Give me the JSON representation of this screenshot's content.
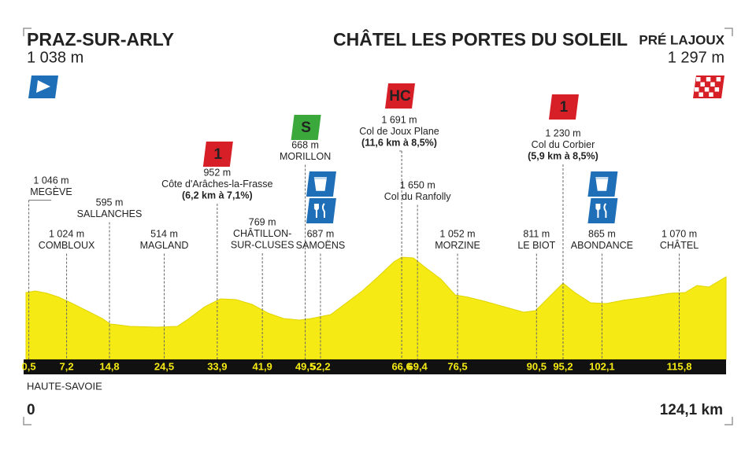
{
  "start": {
    "name": "PRAZ-SUR-ARLY",
    "altitude": "1 038 m"
  },
  "finish": {
    "name": "CHÂTEL LES PORTES DU SOLEIL",
    "suffix": "PRÉ LAJOUX",
    "altitude": "1 297 m"
  },
  "waypoints": [
    {
      "km": "0,5",
      "altitude": "1 046 m",
      "name_lines": [
        "MEGÈVE"
      ]
    },
    {
      "km": "7,2",
      "altitude": "1 024 m",
      "name_lines": [
        "COMBLOUX"
      ]
    },
    {
      "km": "14,8",
      "altitude": "595 m",
      "name_lines": [
        "SALLANCHES"
      ]
    },
    {
      "km": "24,5",
      "altitude": "514 m",
      "name_lines": [
        "MAGLAND"
      ]
    },
    {
      "km": "33,9",
      "altitude": "952 m",
      "name_lines": [
        "Côte d'Arâches-la-Frasse"
      ],
      "climb": "(6,2 km à 7,1%)",
      "badge": "1"
    },
    {
      "km": "41,9",
      "altitude": "769 m",
      "name_lines": [
        "CHÂTILLON-",
        "SUR-CLUSES"
      ]
    },
    {
      "km": "49,5",
      "altitude": "668 m",
      "name_lines": [
        "MORILLON"
      ],
      "badge": "S"
    },
    {
      "km": "52,2",
      "altitude": "687 m",
      "name_lines": [
        "SAMOËNS"
      ]
    },
    {
      "km": "66,6",
      "altitude": "1 691 m",
      "name_lines": [
        "Col de Joux Plane"
      ],
      "climb": "(11,6 km à 8,5%)",
      "badge": "HC"
    },
    {
      "km": "69,4",
      "altitude": "1 650 m",
      "name_lines": [
        "Col du Ranfolly"
      ]
    },
    {
      "km": "76,5",
      "altitude": "1 052 m",
      "name_lines": [
        "MORZINE"
      ]
    },
    {
      "km": "90,5",
      "altitude": "811 m",
      "name_lines": [
        "LE BIOT"
      ]
    },
    {
      "km": "95,2",
      "altitude": "1 230 m",
      "name_lines": [
        "Col du Corbier"
      ],
      "climb": "(5,9 km à 8,5%)",
      "badge": "1"
    },
    {
      "km": "102,1",
      "altitude": "865 m",
      "name_lines": [
        "ABONDANCE"
      ]
    },
    {
      "km": "115,8",
      "altitude": "1 070 m",
      "name_lines": [
        "CHÂTEL"
      ]
    }
  ],
  "region": "HAUTE-SAVOIE",
  "distance_start": "0",
  "distance_end": "124,1 km"
}
